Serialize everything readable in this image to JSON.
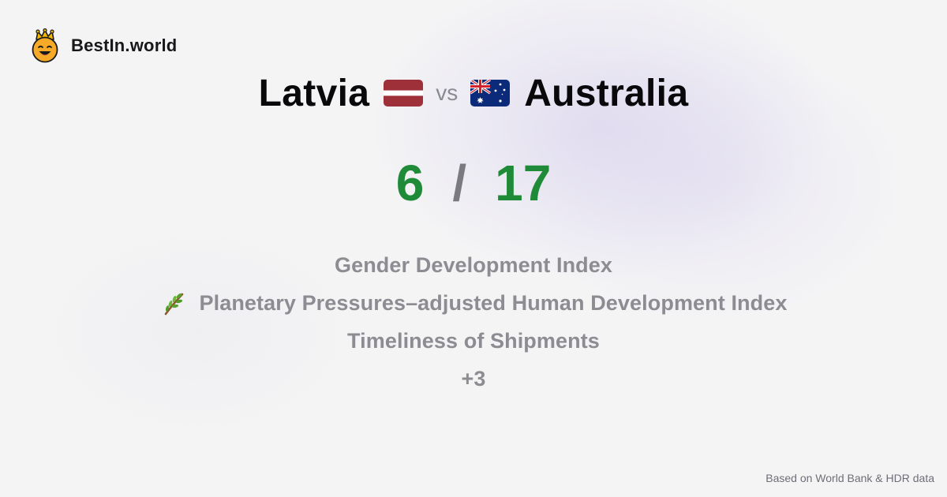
{
  "brand": {
    "name": "BestIn.world",
    "logo_icon": "crowned-smiley-icon"
  },
  "comparison": {
    "country_left": "Latvia",
    "vs_label": "vs",
    "country_right": "Australia",
    "flag_left_icon": "latvia-flag-icon",
    "flag_right_icon": "australia-flag-icon"
  },
  "score": {
    "left": "6",
    "separator": "/",
    "right": "17",
    "color": "#1f8a37"
  },
  "metrics": [
    {
      "label": "Gender Development Index"
    },
    {
      "label": "Planetary Pressures–adjusted Human Development Index",
      "icon": "leaf-branch-icon"
    },
    {
      "label": "Timeliness of Shipments"
    },
    {
      "label": "+3"
    }
  ],
  "footer": {
    "source_text": "Based on World Bank & HDR data"
  }
}
